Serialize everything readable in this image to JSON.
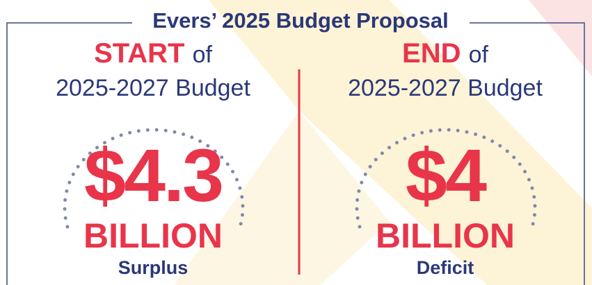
{
  "title": "Evers’ 2025 Budget Proposal",
  "panels": [
    {
      "heading": "START",
      "heading_suffix": "of",
      "period": "2025-2027 Budget",
      "amount": "$4.3",
      "unit": "BILLION",
      "label": "Surplus"
    },
    {
      "heading": "END",
      "heading_suffix": "of",
      "period": "2025-2027 Budget",
      "amount": "$4",
      "unit": "BILLION",
      "label": "Deficit"
    }
  ]
}
